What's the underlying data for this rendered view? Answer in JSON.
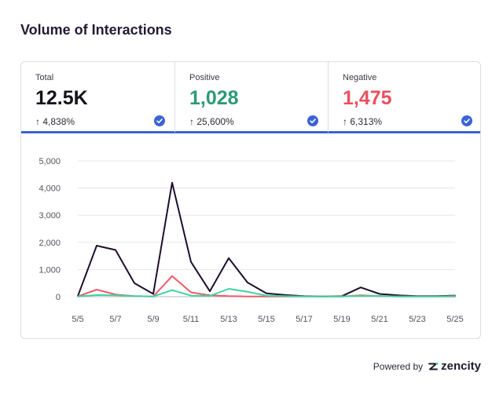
{
  "title": "Volume of Interactions",
  "kpis": [
    {
      "label": "Total",
      "value": "12.5K",
      "change": "↑ 4,838%"
    },
    {
      "label": "Positive",
      "value": "1,028",
      "change": "↑ 25,600%"
    },
    {
      "label": "Negative",
      "value": "1,475",
      "change": "↑ 6,313%"
    }
  ],
  "colors": {
    "total": "#1e0f2e",
    "positive": "#3dd4a0",
    "negative": "#ef5a6a",
    "accent": "#3b63d8"
  },
  "footer": {
    "powered_by": "Powered by",
    "brand": "zencity"
  },
  "chart_data": {
    "type": "line",
    "title": "",
    "xlabel": "",
    "ylabel": "",
    "ylim": [
      0,
      5000
    ],
    "yticks": [
      0,
      1000,
      2000,
      3000,
      4000,
      5000
    ],
    "ytick_labels": [
      "0",
      "1,000",
      "2,000",
      "3,000",
      "4,000",
      "5,000"
    ],
    "grid": true,
    "x": [
      "5/5",
      "5/6",
      "5/7",
      "5/8",
      "5/9",
      "5/10",
      "5/11",
      "5/12",
      "5/13",
      "5/14",
      "5/15",
      "5/16",
      "5/17",
      "5/18",
      "5/19",
      "5/20",
      "5/21",
      "5/22",
      "5/23",
      "5/24",
      "5/25"
    ],
    "xtick_labels": [
      "5/5",
      "5/7",
      "5/9",
      "5/11",
      "5/13",
      "5/15",
      "5/17",
      "5/19",
      "5/21",
      "5/23",
      "5/25"
    ],
    "series": [
      {
        "key": "total",
        "values": [
          20,
          1880,
          1720,
          500,
          100,
          4200,
          1280,
          200,
          1420,
          520,
          120,
          60,
          20,
          10,
          20,
          340,
          100,
          50,
          20,
          20,
          40
        ]
      },
      {
        "key": "negative",
        "values": [
          10,
          260,
          80,
          20,
          10,
          760,
          160,
          50,
          20,
          10,
          10,
          5,
          5,
          5,
          5,
          50,
          20,
          10,
          5,
          5,
          10
        ]
      },
      {
        "key": "positive",
        "values": [
          5,
          60,
          50,
          20,
          10,
          240,
          40,
          30,
          290,
          180,
          40,
          20,
          10,
          5,
          5,
          30,
          30,
          10,
          5,
          5,
          20
        ]
      }
    ]
  }
}
